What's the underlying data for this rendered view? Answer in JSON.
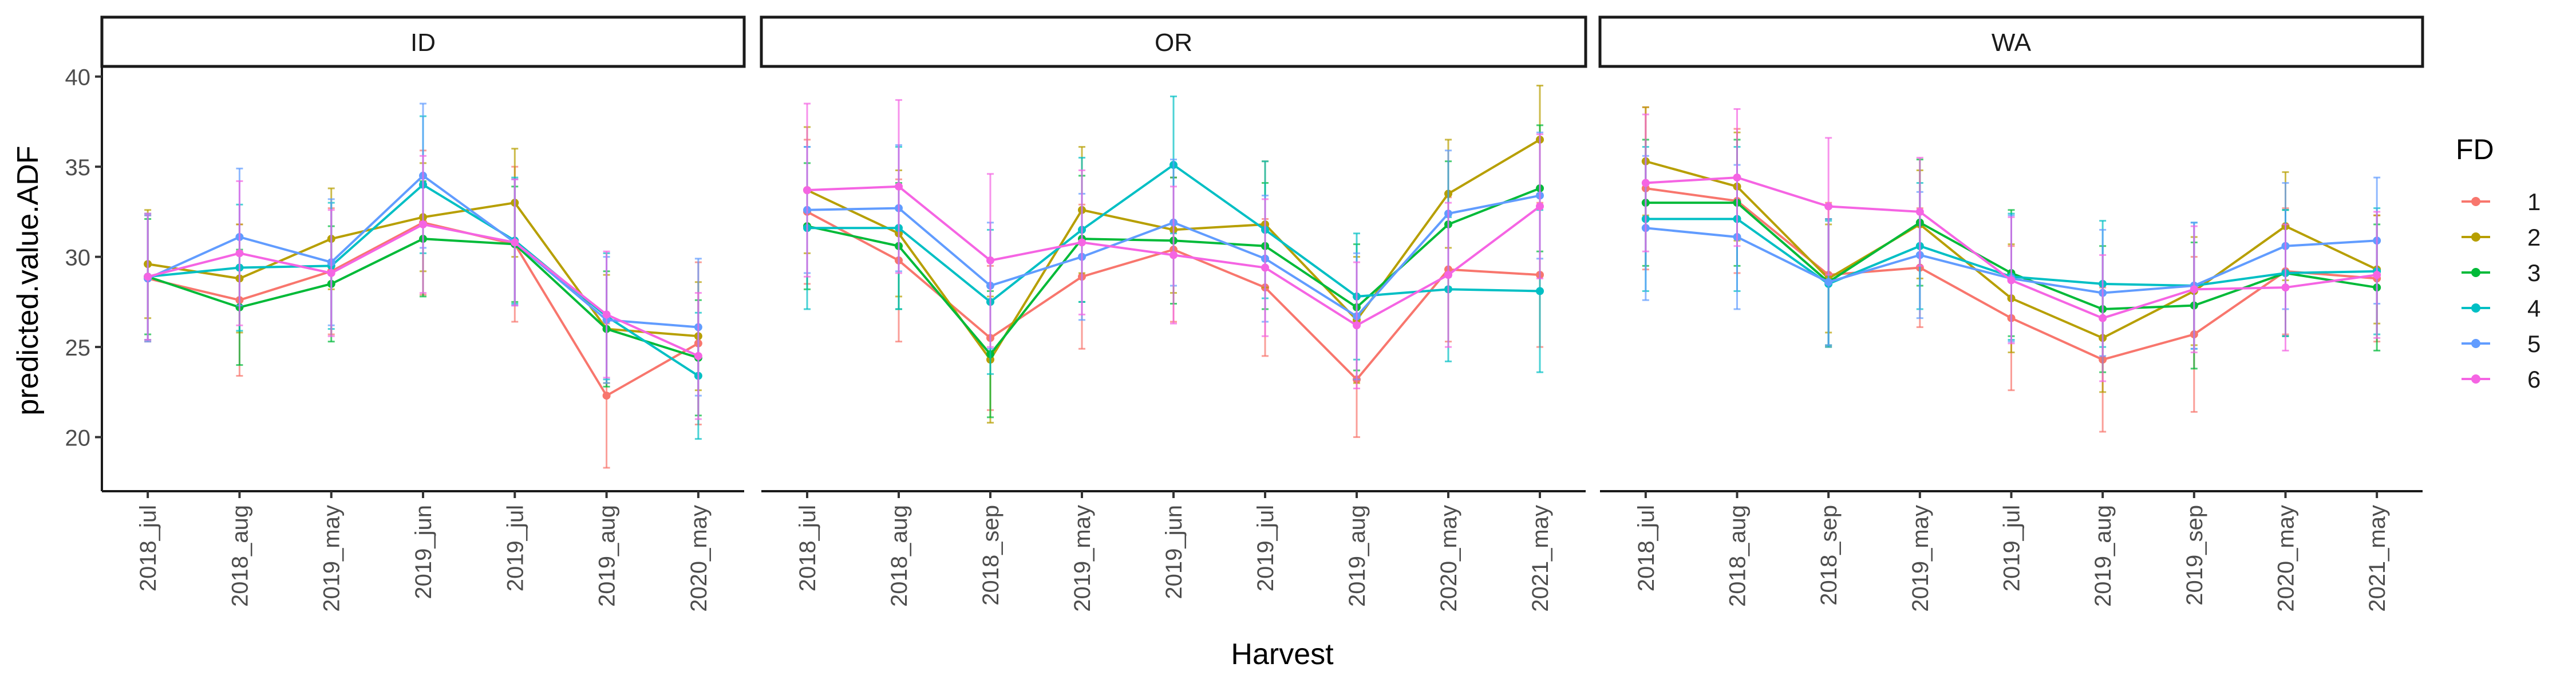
{
  "chart_data": {
    "type": "line",
    "facet_by": "State",
    "xlabel": "Harvest",
    "ylabel": "predicted.value.ADF",
    "ylim": [
      17,
      40.5
    ],
    "yticks": [
      20,
      25,
      30,
      35,
      40
    ],
    "grid": false,
    "error_bars": true,
    "legend": {
      "title": "FD",
      "placement": "right",
      "entries": [
        "1",
        "2",
        "3",
        "4",
        "5",
        "6"
      ],
      "colors": [
        "#F8766D",
        "#B79F00",
        "#00BA38",
        "#00BFC4",
        "#619CFF",
        "#F564E3"
      ]
    },
    "panels": [
      {
        "strip_label": "ID",
        "categories": [
          "2018_jul",
          "2018_aug",
          "2019_may",
          "2019_jun",
          "2019_jul",
          "2019_aug",
          "2020_may"
        ],
        "series": [
          {
            "name": "1",
            "values": [
              28.8,
              27.6,
              29.2,
              31.9,
              30.7,
              22.3,
              25.2
            ],
            "err": [
              3.5,
              4.2,
              3.5,
              4.0,
              4.3,
              4.0,
              4.5
            ]
          },
          {
            "name": "2",
            "values": [
              29.6,
              28.8,
              31.0,
              32.2,
              33.0,
              26.0,
              25.6
            ],
            "err": [
              3.0,
              3.0,
              2.8,
              3.0,
              3.0,
              3.0,
              3.0
            ]
          },
          {
            "name": "3",
            "values": [
              28.9,
              27.2,
              28.5,
              31.0,
              30.7,
              26.0,
              24.4
            ],
            "err": [
              3.2,
              3.2,
              3.2,
              3.2,
              3.2,
              3.2,
              3.2
            ]
          },
          {
            "name": "4",
            "values": [
              28.9,
              29.4,
              29.5,
              34.0,
              30.9,
              26.7,
              23.4
            ],
            "err": [
              3.5,
              3.5,
              3.5,
              3.8,
              3.5,
              3.5,
              3.5
            ]
          },
          {
            "name": "5",
            "values": [
              28.8,
              31.1,
              29.7,
              34.5,
              30.8,
              26.5,
              26.1
            ],
            "err": [
              3.5,
              3.8,
              3.5,
              4.0,
              3.5,
              3.5,
              3.8
            ]
          },
          {
            "name": "6",
            "values": [
              28.9,
              30.2,
              29.1,
              31.8,
              30.8,
              26.8,
              24.5
            ],
            "err": [
              3.5,
              4.0,
              3.5,
              3.8,
              3.5,
              3.5,
              3.5
            ]
          }
        ]
      },
      {
        "strip_label": "OR",
        "categories": [
          "2018_jul",
          "2018_aug",
          "2018_sep",
          "2019_may",
          "2019_jun",
          "2019_jul",
          "2019_aug",
          "2020_may",
          "2021_may"
        ],
        "series": [
          {
            "name": "1",
            "values": [
              32.5,
              29.8,
              25.5,
              28.9,
              30.4,
              28.3,
              23.2,
              29.3,
              29.0
            ],
            "err": [
              4.0,
              4.5,
              4.0,
              4.0,
              4.0,
              3.8,
              3.2,
              4.0,
              4.0
            ]
          },
          {
            "name": "2",
            "values": [
              33.7,
              31.3,
              24.3,
              32.6,
              31.5,
              31.8,
              26.5,
              33.5,
              36.5
            ],
            "err": [
              3.5,
              3.5,
              3.5,
              3.5,
              3.5,
              3.5,
              3.5,
              3.0,
              3.0
            ]
          },
          {
            "name": "3",
            "values": [
              31.7,
              30.6,
              24.6,
              31.0,
              30.9,
              30.6,
              27.2,
              31.8,
              33.8
            ],
            "err": [
              3.5,
              3.5,
              3.5,
              3.5,
              3.5,
              3.5,
              3.5,
              3.5,
              3.5
            ]
          },
          {
            "name": "4",
            "values": [
              31.6,
              31.6,
              27.5,
              31.5,
              35.1,
              31.5,
              27.8,
              28.2,
              28.1
            ],
            "err": [
              4.5,
              4.5,
              4.0,
              4.0,
              3.8,
              3.8,
              3.5,
              4.0,
              4.5
            ]
          },
          {
            "name": "5",
            "values": [
              32.6,
              32.7,
              28.4,
              30.0,
              31.9,
              29.9,
              26.7,
              32.4,
              33.4
            ],
            "err": [
              3.5,
              3.5,
              3.5,
              3.5,
              3.5,
              3.5,
              3.5,
              3.5,
              3.5
            ]
          },
          {
            "name": "6",
            "values": [
              33.7,
              33.9,
              29.8,
              30.8,
              30.1,
              29.4,
              26.2,
              29.0,
              32.8
            ],
            "err": [
              4.8,
              4.8,
              4.8,
              4.0,
              3.8,
              3.8,
              3.5,
              4.0,
              4.0
            ]
          }
        ]
      },
      {
        "strip_label": "WA",
        "categories": [
          "2018_jul",
          "2018_aug",
          "2018_sep",
          "2019_may",
          "2019_jul",
          "2019_aug",
          "2019_sep",
          "2020_may",
          "2021_may"
        ],
        "series": [
          {
            "name": "1",
            "values": [
              33.8,
              33.1,
              29.0,
              29.4,
              26.6,
              24.3,
              25.7,
              29.2,
              28.8
            ],
            "err": [
              4.5,
              4.0,
              4.0,
              3.3,
              4.0,
              4.0,
              4.3,
              3.5,
              3.5
            ]
          },
          {
            "name": "2",
            "values": [
              35.3,
              33.9,
              28.8,
              31.8,
              27.7,
              25.5,
              28.1,
              31.7,
              29.3
            ],
            "err": [
              3.0,
              3.0,
              3.0,
              3.0,
              3.0,
              3.0,
              3.0,
              3.0,
              3.0
            ]
          },
          {
            "name": "3",
            "values": [
              33.0,
              33.0,
              28.6,
              31.9,
              29.1,
              27.1,
              27.3,
              29.1,
              28.3
            ],
            "err": [
              3.5,
              3.5,
              3.5,
              3.5,
              3.5,
              3.5,
              3.5,
              3.5,
              3.5
            ]
          },
          {
            "name": "4",
            "values": [
              32.1,
              32.1,
              28.5,
              30.6,
              28.9,
              28.5,
              28.4,
              29.1,
              29.2
            ],
            "err": [
              4.0,
              4.0,
              3.5,
              3.5,
              3.5,
              3.5,
              3.5,
              3.5,
              3.5
            ]
          },
          {
            "name": "5",
            "values": [
              31.6,
              31.1,
              28.6,
              30.1,
              28.8,
              28.0,
              28.4,
              30.6,
              30.9
            ],
            "err": [
              4.0,
              4.0,
              3.5,
              3.5,
              3.5,
              3.5,
              3.5,
              3.5,
              3.5
            ]
          },
          {
            "name": "6",
            "values": [
              34.1,
              34.4,
              32.8,
              32.5,
              28.7,
              26.6,
              28.2,
              28.3,
              29.0
            ],
            "err": [
              3.8,
              3.8,
              3.8,
              3.0,
              3.5,
              3.5,
              3.5,
              3.5,
              3.5
            ]
          }
        ]
      }
    ]
  }
}
